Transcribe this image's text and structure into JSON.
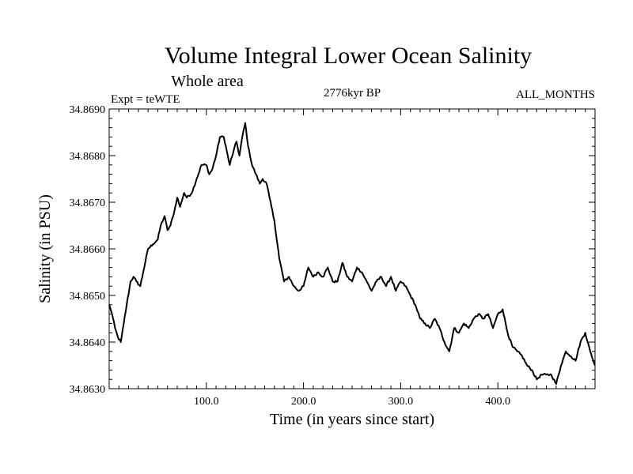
{
  "chart_data": {
    "type": "line",
    "title": "Volume Integral Lower Ocean Salinity",
    "subtitle": "Whole area",
    "experiment_label": "Expt = teWTE",
    "period_label": "2776kyr BP",
    "months_label": "ALL_MONTHS",
    "xlabel": "Time (in years since start)",
    "ylabel": "Salinity (in PSU)",
    "xlim": [
      0,
      500
    ],
    "ylim": [
      34.863,
      34.869
    ],
    "xticks": [
      100,
      200,
      300,
      400
    ],
    "xtick_labels": [
      "100.0",
      "200.0",
      "300.0",
      "400.0"
    ],
    "yticks": [
      34.863,
      34.864,
      34.865,
      34.866,
      34.867,
      34.868,
      34.869
    ],
    "ytick_labels": [
      "34.8630",
      "34.8640",
      "34.8650",
      "34.8660",
      "34.8670",
      "34.8680",
      "34.8690"
    ],
    "grid": false,
    "series": [
      {
        "name": "Volume Integral Lower Ocean Salinity",
        "color": "#000000",
        "x": [
          0,
          3,
          6,
          9,
          12,
          15,
          18,
          22,
          25,
          28,
          32,
          35,
          40,
          45,
          50,
          53,
          57,
          60,
          63,
          67,
          70,
          73,
          77,
          80,
          85,
          90,
          95,
          100,
          103,
          106,
          110,
          114,
          118,
          121,
          124,
          128,
          131,
          134,
          137,
          140,
          143,
          147,
          151,
          155,
          158,
          162,
          165,
          170,
          175,
          180,
          185,
          190,
          195,
          200,
          205,
          210,
          215,
          220,
          225,
          230,
          235,
          240,
          245,
          250,
          255,
          260,
          265,
          270,
          275,
          280,
          285,
          290,
          295,
          300,
          305,
          310,
          315,
          320,
          325,
          330,
          335,
          340,
          345,
          350,
          355,
          360,
          365,
          370,
          375,
          380,
          385,
          390,
          395,
          400,
          405,
          410,
          415,
          420,
          425,
          430,
          435,
          440,
          445,
          450,
          455,
          460,
          465,
          470,
          475,
          480,
          485,
          490,
          495,
          500
        ],
        "values": [
          34.8648,
          34.8646,
          34.8643,
          34.8641,
          34.864,
          34.8644,
          34.8648,
          34.8653,
          34.8654,
          34.8653,
          34.8652,
          34.8655,
          34.866,
          34.8661,
          34.8662,
          34.8665,
          34.8667,
          34.8664,
          34.8665,
          34.8668,
          34.8671,
          34.8669,
          34.8672,
          34.8671,
          34.8672,
          34.8675,
          34.8678,
          34.8678,
          34.8676,
          34.8677,
          34.868,
          34.8684,
          34.8684,
          34.8681,
          34.8678,
          34.8681,
          34.8683,
          34.868,
          34.8684,
          34.8687,
          34.8682,
          34.8678,
          34.8676,
          34.8674,
          34.8675,
          34.8674,
          34.8671,
          34.8666,
          34.8658,
          34.8653,
          34.8654,
          34.8652,
          34.8651,
          34.8652,
          34.8656,
          34.8654,
          34.8655,
          34.8654,
          34.8656,
          34.8653,
          34.8653,
          34.8657,
          34.8654,
          34.8653,
          34.8656,
          34.8655,
          34.8653,
          34.8651,
          34.8653,
          34.8654,
          34.8652,
          34.8654,
          34.8651,
          34.8653,
          34.8652,
          34.865,
          34.8648,
          34.8645,
          34.8644,
          34.8643,
          34.8645,
          34.8643,
          34.864,
          34.8638,
          34.8643,
          34.8642,
          34.8644,
          34.8643,
          34.8645,
          34.8646,
          34.8645,
          34.8646,
          34.8643,
          34.8646,
          34.8647,
          34.8642,
          34.8639,
          34.8638,
          34.8637,
          34.8635,
          34.8634,
          34.8632,
          34.8633,
          34.8633,
          34.8633,
          34.8631,
          34.8635,
          34.8638,
          34.8637,
          34.8636,
          34.864,
          34.8642,
          34.8638,
          34.8635
        ]
      }
    ]
  }
}
